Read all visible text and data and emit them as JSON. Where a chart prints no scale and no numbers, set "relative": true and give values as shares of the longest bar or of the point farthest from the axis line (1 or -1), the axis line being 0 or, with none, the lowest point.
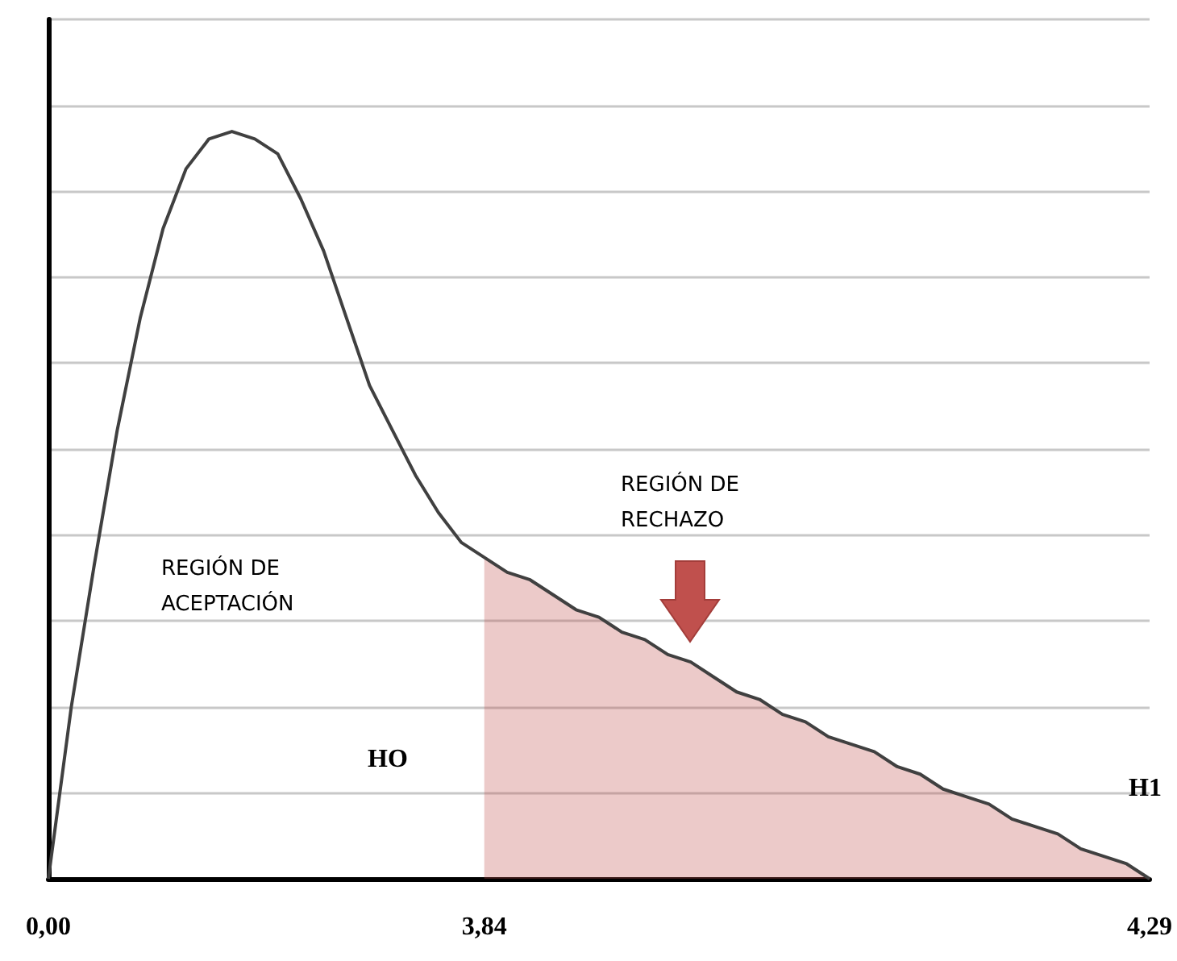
{
  "chart_data": {
    "type": "line",
    "relative": true,
    "grid": "y",
    "marker": "none",
    "line_style": "solid",
    "categories": [
      "0,00",
      null,
      null,
      null,
      null,
      null,
      null,
      null,
      null,
      null,
      null,
      null,
      null,
      null,
      null,
      null,
      null,
      null,
      null,
      "3,84",
      null,
      null,
      null,
      null,
      null,
      null,
      null,
      null,
      null,
      null,
      null,
      null,
      null,
      null,
      null,
      null,
      null,
      null,
      null,
      null,
      null,
      null,
      null,
      null,
      null,
      null,
      null,
      null,
      "4,29"
    ],
    "series": [
      {
        "color": "#404040",
        "values": [
          0,
          0.23,
          0.42,
          0.6,
          0.75,
          0.87,
          0.95,
          0.99,
          1,
          0.99,
          0.97,
          0.91,
          0.84,
          0.75,
          0.66,
          0.6,
          0.54,
          0.49,
          0.45,
          0.43,
          0.41,
          0.4,
          0.38,
          0.36,
          0.35,
          0.33,
          0.32,
          0.3,
          0.29,
          0.27,
          0.25,
          0.24,
          0.22,
          0.21,
          0.19,
          0.18,
          0.17,
          0.15,
          0.14,
          0.12,
          0.11,
          0.1,
          0.08,
          0.07,
          0.06,
          0.04,
          0.03,
          0.02,
          0
        ]
      },
      {
        "type": "area",
        "color": "#c0504d",
        "values": [
          null,
          null,
          null,
          null,
          null,
          null,
          null,
          null,
          null,
          null,
          null,
          null,
          null,
          null,
          null,
          null,
          null,
          null,
          null,
          0.43,
          0.41,
          0.4,
          0.38,
          0.36,
          0.35,
          0.33,
          0.32,
          0.3,
          0.29,
          0.27,
          0.25,
          0.24,
          0.22,
          0.21,
          0.19,
          0.18,
          0.17,
          0.15,
          0.14,
          0.12,
          0.11,
          0.1,
          0.08,
          0.07,
          0.06,
          0.04,
          0.03,
          0.02,
          0
        ]
      }
    ],
    "annotations": [
      "REGIÓN DE ACEPTACIÓN",
      "REGIÓN DE RECHAZO",
      "HO",
      "H1"
    ]
  }
}
